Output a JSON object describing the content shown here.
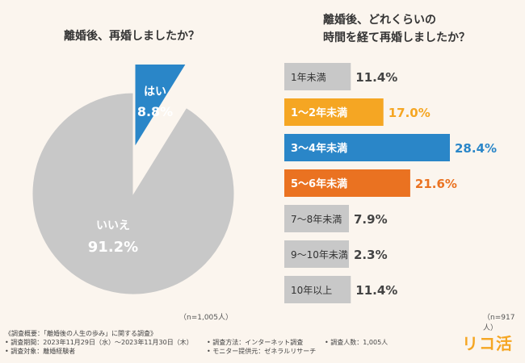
{
  "chart_data": [
    {
      "type": "pie",
      "title": "離婚後、再婚しましたか？",
      "slices": [
        {
          "label": "はい",
          "value": 8.8,
          "display": "8.8%",
          "color": "#2a86c8"
        },
        {
          "label": "いいえ",
          "value": 91.2,
          "display": "91.2%",
          "color": "#c8c8c8"
        }
      ],
      "note": "（n=1,005人）"
    },
    {
      "type": "bar",
      "orientation": "horizontal",
      "title_lines": [
        "離婚後、どれくらいの",
        "時間を経て再婚しましたか？"
      ],
      "categories": [
        "1年未満",
        "1〜2年未満",
        "3〜4年未満",
        "5〜6年未満",
        "7〜8年未満",
        "9〜10年未満",
        "10年以上"
      ],
      "values": [
        11.4,
        17.0,
        28.4,
        21.6,
        7.9,
        2.3,
        11.4
      ],
      "value_labels": [
        "11.4%",
        "17.0%",
        "28.4%",
        "21.6%",
        "7.9%",
        "2.3%",
        "11.4%"
      ],
      "colors": [
        "#c8c8c8",
        "#f5a623",
        "#2a86c8",
        "#ea7221",
        "#c8c8c8",
        "#c8c8c8",
        "#c8c8c8"
      ],
      "xlim": [
        0,
        28.4
      ],
      "note": "（n=917人）"
    }
  ],
  "footer": {
    "overview": "《調査概要：「離婚後の人生の歩み」に関する調査》",
    "period": "• 調査期間：2023年11月29日（水）〜2023年11月30日（木）",
    "method": "• 調査方法：インターネット調査",
    "count": "• 調査人数：1,005人",
    "target": "• 調査対象：離婚経験者",
    "provider": "• モニター提供元：ゼネラルリサーチ"
  },
  "logo": "リコ活"
}
